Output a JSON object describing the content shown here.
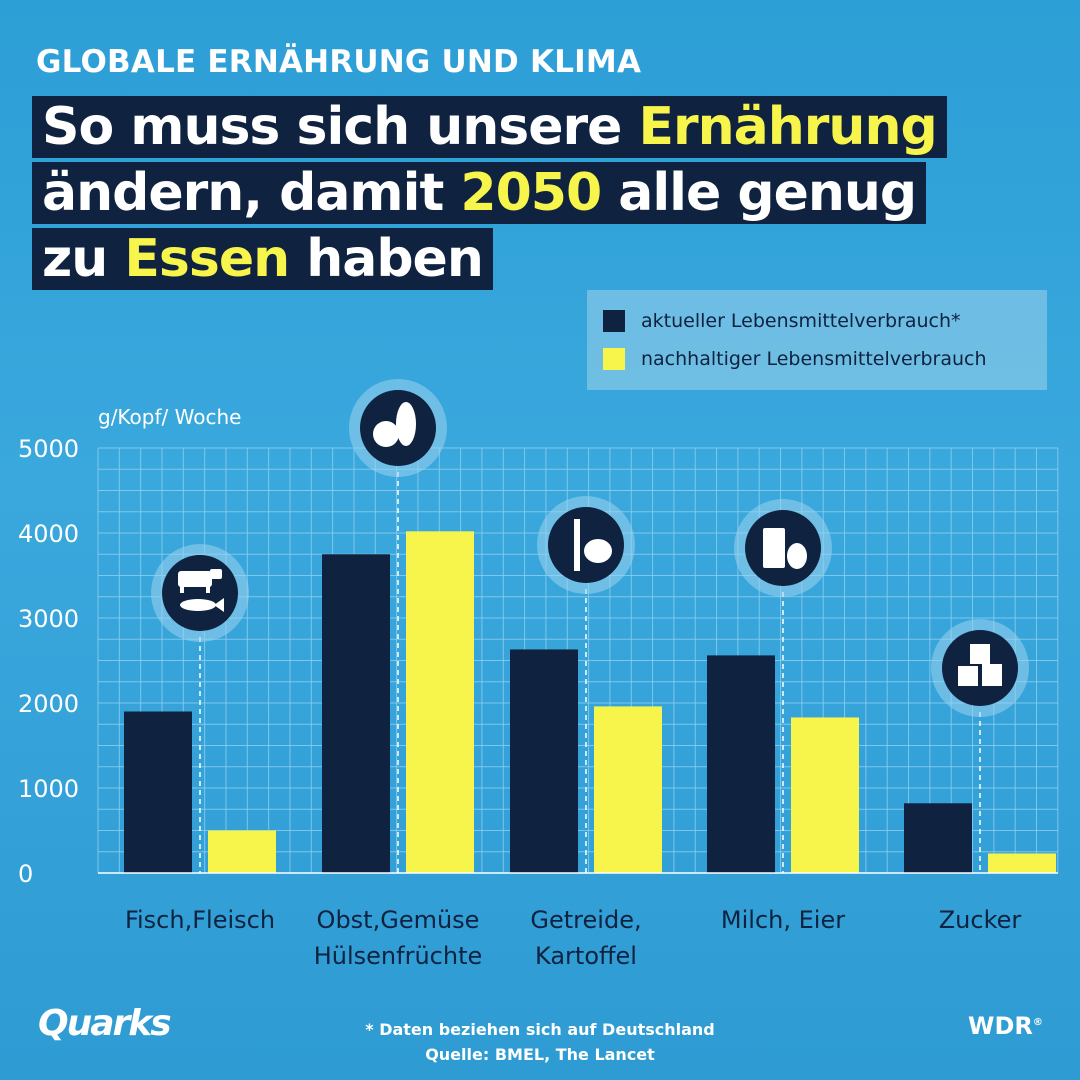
{
  "header": {
    "kicker": "GLOBALE ERNÄHRUNG UND KLIMA",
    "headline": {
      "line1_a": "So muss sich unsere ",
      "line1_b": "Ernährung",
      "line2_a": "ändern, damit ",
      "line2_b": "2050",
      "line2_c": " alle genug",
      "line3_a": "zu ",
      "line3_b": "Essen",
      "line3_c": " haben"
    }
  },
  "legend": {
    "current_label": "aktueller Lebensmittelverbrauch*",
    "sustainable_label": "nachhaltiger Lebensmittelverbrauch"
  },
  "colors": {
    "current": "#0f2240",
    "sustainable": "#f7f44b",
    "grid": "#8fd0ee",
    "background": "#3aa8dd"
  },
  "icons": [
    "cow-fish-icon",
    "fruit-corn-icon",
    "wheat-potato-icon",
    "milk-egg-icon",
    "sugar-cubes-icon"
  ],
  "chart_data": {
    "type": "bar",
    "ylabel": "g/Kopf/ Woche",
    "ylim": [
      0,
      5000
    ],
    "yticks": [
      "5000",
      "4000",
      "3000",
      "2000",
      "1000",
      "0"
    ],
    "categories": [
      [
        "Fisch,Fleisch"
      ],
      [
        "Obst,Gemüse",
        "Hülsenfrüchte"
      ],
      [
        "Getreide,",
        "Kartoffel"
      ],
      [
        "Milch, Eier"
      ],
      [
        "Zucker"
      ]
    ],
    "series": [
      {
        "name": "aktueller Lebensmittelverbrauch*",
        "values": [
          1900,
          3750,
          2630,
          2560,
          820
        ]
      },
      {
        "name": "nachhaltiger Lebensmittelverbrauch",
        "values": [
          500,
          4020,
          1960,
          1830,
          230
        ]
      }
    ],
    "grid": true,
    "legend_position": "top-right"
  },
  "footer": {
    "logo_left": "Quarks",
    "logo_right": "WDR",
    "note": "* Daten beziehen sich auf Deutschland",
    "source": "Quelle: BMEL, The Lancet"
  }
}
